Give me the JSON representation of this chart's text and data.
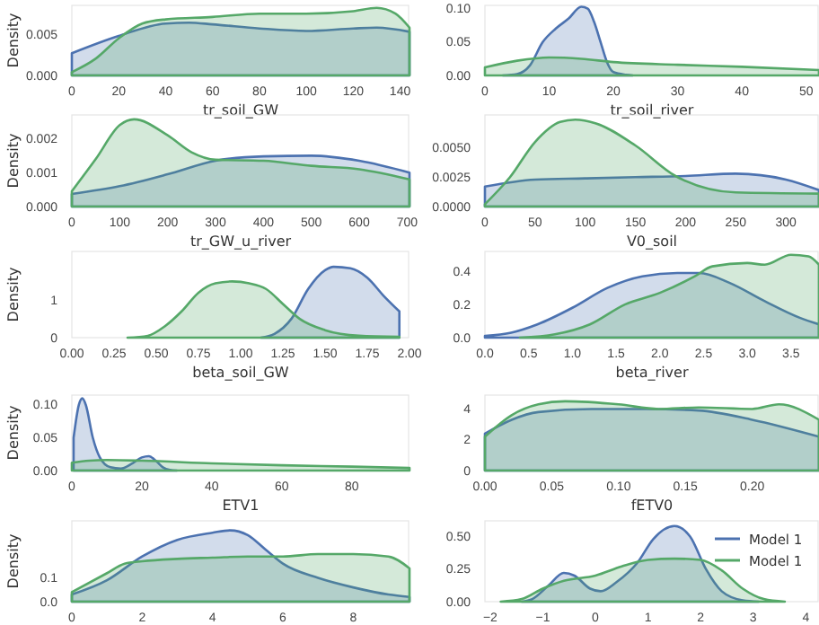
{
  "chart_data": [
    {
      "type": "area",
      "xlabel": "tr_soil_GW",
      "ylabel": "Density",
      "xlim": [
        0,
        144
      ],
      "ylim": [
        0,
        0.0085
      ],
      "xticks": [
        0,
        20,
        40,
        60,
        80,
        100,
        120,
        140
      ],
      "yticks": [
        {
          "value": 0,
          "label": "0.000"
        },
        {
          "value": 0.005,
          "label": "0.005"
        }
      ],
      "series": [
        {
          "color": "#4c72b0",
          "x": [
            0,
            20,
            40,
            50,
            60,
            80,
            100,
            120,
            130,
            144
          ],
          "values": [
            0.0027,
            0.0048,
            0.0063,
            0.0064,
            0.0062,
            0.0057,
            0.0054,
            0.0057,
            0.0058,
            0.0053
          ]
        },
        {
          "color": "#55a868",
          "x": [
            0,
            10,
            20,
            30,
            40,
            60,
            80,
            100,
            120,
            130,
            138,
            144
          ],
          "values": [
            0.0004,
            0.002,
            0.0045,
            0.0063,
            0.0068,
            0.0071,
            0.0075,
            0.0075,
            0.0078,
            0.0082,
            0.0075,
            0.0058
          ]
        }
      ]
    },
    {
      "type": "area",
      "xlabel": "tr_soil_river",
      "xlim": [
        0,
        52
      ],
      "ylim": [
        0,
        0.105
      ],
      "xticks": [
        0,
        10,
        20,
        30,
        40,
        50
      ],
      "yticks": [
        {
          "value": 0,
          "label": "0.00"
        },
        {
          "value": 0.05,
          "label": "0.05"
        },
        {
          "value": 0.1,
          "label": "0.10"
        }
      ],
      "series": [
        {
          "color": "#4c72b0",
          "x": [
            2.8,
            5,
            7,
            9,
            11,
            13,
            15,
            16,
            17,
            18,
            19,
            20,
            22,
            23
          ],
          "values": [
            0,
            0.002,
            0.015,
            0.05,
            0.07,
            0.085,
            0.103,
            0.1,
            0.08,
            0.05,
            0.02,
            0.005,
            0.001,
            0
          ]
        },
        {
          "color": "#55a868",
          "x": [
            0,
            5,
            10,
            15,
            20,
            30,
            40,
            52
          ],
          "values": [
            0.012,
            0.022,
            0.027,
            0.025,
            0.02,
            0.016,
            0.013,
            0.008
          ]
        }
      ]
    },
    {
      "type": "area",
      "xlabel": "tr_GW_u_river",
      "ylabel": "Density",
      "xlim": [
        0,
        705
      ],
      "ylim": [
        0,
        0.0027
      ],
      "xticks": [
        0,
        100,
        200,
        300,
        400,
        500,
        600,
        700
      ],
      "yticks": [
        {
          "value": 0,
          "label": "0.000"
        },
        {
          "value": 0.001,
          "label": "0.001"
        },
        {
          "value": 0.002,
          "label": "0.002"
        }
      ],
      "series": [
        {
          "color": "#4c72b0",
          "x": [
            0,
            100,
            200,
            300,
            400,
            500,
            600,
            705
          ],
          "values": [
            0.00037,
            0.0006,
            0.00095,
            0.00135,
            0.00148,
            0.0015,
            0.00135,
            0.001
          ]
        },
        {
          "color": "#55a868",
          "x": [
            0,
            50,
            100,
            130,
            200,
            250,
            300,
            400,
            500,
            600,
            705
          ],
          "values": [
            0.00045,
            0.0014,
            0.0024,
            0.00257,
            0.0021,
            0.0016,
            0.00138,
            0.00135,
            0.0012,
            0.0011,
            0.0008
          ]
        }
      ]
    },
    {
      "type": "area",
      "xlabel": "V0_soil",
      "xlim": [
        0,
        333
      ],
      "ylim": [
        0,
        0.0078
      ],
      "xticks": [
        0,
        50,
        100,
        150,
        200,
        250,
        300
      ],
      "yticks": [
        {
          "value": 0,
          "label": "0.0000"
        },
        {
          "value": 0.0025,
          "label": "0.0025"
        },
        {
          "value": 0.005,
          "label": "0.0050"
        }
      ],
      "series": [
        {
          "color": "#4c72b0",
          "x": [
            0,
            50,
            100,
            150,
            200,
            250,
            300,
            333
          ],
          "values": [
            0.0017,
            0.0023,
            0.0024,
            0.0025,
            0.0026,
            0.0028,
            0.0023,
            0.0014
          ]
        },
        {
          "color": "#55a868",
          "x": [
            0,
            25,
            50,
            75,
            90,
            110,
            150,
            190,
            250,
            333
          ],
          "values": [
            0.0002,
            0.0025,
            0.0055,
            0.0072,
            0.0074,
            0.0071,
            0.0052,
            0.0026,
            0.0012,
            0.0011
          ]
        }
      ]
    },
    {
      "type": "area",
      "xlabel": "beta_soil_GW",
      "ylabel": "Density",
      "xlim": [
        0,
        2
      ],
      "ylim": [
        0,
        2.3
      ],
      "xticks": [
        {
          "value": 0,
          "label": "0.00"
        },
        {
          "value": 0.25,
          "label": "0.25"
        },
        {
          "value": 0.5,
          "label": "0.50"
        },
        {
          "value": 0.75,
          "label": "0.75"
        },
        {
          "value": 1,
          "label": "1.00"
        },
        {
          "value": 1.25,
          "label": "1.25"
        },
        {
          "value": 1.5,
          "label": "1.50"
        },
        {
          "value": 1.75,
          "label": "1.75"
        },
        {
          "value": 2,
          "label": "2.00"
        }
      ],
      "yticks": [
        0,
        1
      ],
      "series": [
        {
          "color": "#4c72b0",
          "x": [
            1.12,
            1.2,
            1.3,
            1.4,
            1.5,
            1.55,
            1.65,
            1.75,
            1.85,
            1.94
          ],
          "values": [
            0,
            0.1,
            0.5,
            1.3,
            1.8,
            1.89,
            1.85,
            1.6,
            1.1,
            0.7
          ]
        },
        {
          "color": "#55a868",
          "x": [
            0.33,
            0.45,
            0.55,
            0.65,
            0.75,
            0.85,
            0.95,
            1.05,
            1.15,
            1.25,
            1.35,
            1.5,
            1.7,
            1.94
          ],
          "values": [
            0,
            0.05,
            0.3,
            0.7,
            1.2,
            1.45,
            1.5,
            1.45,
            1.3,
            0.9,
            0.5,
            0.2,
            0.05,
            0.02
          ]
        }
      ]
    },
    {
      "type": "area",
      "xlabel": "beta_river",
      "xlim": [
        0,
        3.82
      ],
      "ylim": [
        0,
        0.52
      ],
      "xticks": [
        {
          "value": 0,
          "label": "0.0"
        },
        {
          "value": 0.5,
          "label": "0.5"
        },
        {
          "value": 1,
          "label": "1.0"
        },
        {
          "value": 1.5,
          "label": "1.5"
        },
        {
          "value": 2,
          "label": "2.0"
        },
        {
          "value": 2.5,
          "label": "2.5"
        },
        {
          "value": 3,
          "label": "3.0"
        },
        {
          "value": 3.5,
          "label": "3.5"
        }
      ],
      "yticks": [
        {
          "value": 0,
          "label": "0.0"
        },
        {
          "value": 0.2,
          "label": "0.2"
        },
        {
          "value": 0.4,
          "label": "0.4"
        }
      ],
      "series": [
        {
          "color": "#4c72b0",
          "x": [
            0,
            0.3,
            0.6,
            1,
            1.4,
            1.8,
            2.2,
            2.45,
            2.8,
            3.2,
            3.6,
            3.82
          ],
          "values": [
            0.01,
            0.03,
            0.08,
            0.18,
            0.3,
            0.37,
            0.39,
            0.39,
            0.33,
            0.22,
            0.12,
            0.08
          ]
        },
        {
          "color": "#55a868",
          "x": [
            0.4,
            0.8,
            1.2,
            1.6,
            2,
            2.4,
            2.6,
            3,
            3.2,
            3.5,
            3.7,
            3.82
          ],
          "values": [
            0,
            0.02,
            0.08,
            0.2,
            0.27,
            0.37,
            0.43,
            0.45,
            0.44,
            0.5,
            0.49,
            0.44
          ]
        }
      ]
    },
    {
      "type": "area",
      "xlabel": "ETV1",
      "ylabel": "Density",
      "xlim": [
        0,
        96.5
      ],
      "ylim": [
        0,
        0.115
      ],
      "xticks": [
        0,
        20,
        40,
        60,
        80
      ],
      "yticks": [
        {
          "value": 0,
          "label": "0.00"
        },
        {
          "value": 0.05,
          "label": "0.05"
        },
        {
          "value": 0.1,
          "label": "0.10"
        }
      ],
      "series": [
        {
          "color": "#4c72b0",
          "x": [
            0.5,
            2,
            3,
            4,
            6,
            8,
            11,
            14,
            17,
            20,
            22,
            24,
            26,
            28,
            30
          ],
          "values": [
            0.05,
            0.1,
            0.11,
            0.1,
            0.05,
            0.02,
            0.005,
            0.003,
            0.01,
            0.02,
            0.022,
            0.015,
            0.005,
            0.001,
            0
          ]
        },
        {
          "color": "#55a868",
          "x": [
            0,
            5,
            10,
            20,
            40,
            60,
            80,
            96.5
          ],
          "values": [
            0.012,
            0.015,
            0.016,
            0.015,
            0.011,
            0.008,
            0.006,
            0.004
          ]
        }
      ]
    },
    {
      "type": "area",
      "xlabel": "fETV0",
      "xlim": [
        0,
        0.25
      ],
      "ylim": [
        0,
        4.9
      ],
      "xticks": [
        {
          "value": 0,
          "label": "0.00"
        },
        {
          "value": 0.05,
          "label": "0.05"
        },
        {
          "value": 0.1,
          "label": "0.10"
        },
        {
          "value": 0.15,
          "label": "0.15"
        },
        {
          "value": 0.2,
          "label": "0.20"
        }
      ],
      "yticks": [
        0,
        2,
        4
      ],
      "series": [
        {
          "color": "#4c72b0",
          "x": [
            0,
            0.02,
            0.04,
            0.08,
            0.12,
            0.16,
            0.2,
            0.25
          ],
          "values": [
            2.4,
            3.3,
            3.8,
            4,
            4,
            3.9,
            3.3,
            2.2
          ]
        },
        {
          "color": "#55a868",
          "x": [
            0,
            0.02,
            0.04,
            0.06,
            0.1,
            0.13,
            0.16,
            0.2,
            0.22,
            0.25
          ],
          "values": [
            2.2,
            3.6,
            4.3,
            4.5,
            4.3,
            4,
            4.1,
            4,
            4.3,
            3.3
          ]
        }
      ]
    },
    {
      "type": "area",
      "ylabel": "Density",
      "xlim": [
        0,
        9.6
      ],
      "ylim": [
        0,
        0.34
      ],
      "xticks": [
        0,
        2,
        4,
        6,
        8
      ],
      "yticks": [
        {
          "value": 0,
          "label": "0.0"
        },
        {
          "value": 0.1,
          "label": "0.1"
        }
      ],
      "series": [
        {
          "color": "#4c72b0",
          "x": [
            0,
            1,
            2,
            3,
            4,
            4.5,
            5,
            5.5,
            6,
            7,
            8,
            9,
            9.6
          ],
          "values": [
            0.03,
            0.09,
            0.19,
            0.26,
            0.29,
            0.3,
            0.28,
            0.22,
            0.16,
            0.1,
            0.06,
            0.03,
            0.02
          ]
        },
        {
          "color": "#55a868",
          "x": [
            0,
            1,
            1.5,
            2,
            3,
            4,
            5,
            6,
            7,
            8,
            9,
            9.6
          ],
          "values": [
            0.04,
            0.12,
            0.16,
            0.17,
            0.18,
            0.185,
            0.19,
            0.19,
            0.2,
            0.2,
            0.19,
            0.14
          ]
        }
      ]
    },
    {
      "type": "area",
      "legend": "top right",
      "xlim": [
        -2.1,
        4.25
      ],
      "ylim": [
        0,
        0.62
      ],
      "xticks": [
        {
          "value": -2,
          "label": "−2"
        },
        {
          "value": -1,
          "label": "−1"
        },
        0,
        1,
        2,
        3,
        4
      ],
      "yticks": [
        {
          "value": 0,
          "label": "0.00"
        },
        {
          "value": 0.25,
          "label": "0.25"
        },
        {
          "value": 0.5,
          "label": "0.50"
        }
      ],
      "series": [
        {
          "name": "Model 1",
          "color": "#4c72b0",
          "x": [
            -1.4,
            -1.2,
            -0.9,
            -0.6,
            -0.4,
            -0.1,
            0.1,
            0.4,
            0.8,
            1.1,
            1.5,
            1.8,
            2.1,
            2.4,
            2.8,
            3.1
          ],
          "values": [
            0,
            0.02,
            0.12,
            0.22,
            0.2,
            0.1,
            0.08,
            0.15,
            0.3,
            0.48,
            0.58,
            0.5,
            0.25,
            0.08,
            0.01,
            0
          ]
        },
        {
          "name": "Model 1",
          "color": "#55a868",
          "x": [
            -1.8,
            -1.4,
            -1,
            -0.6,
            0,
            0.5,
            1,
            1.5,
            2,
            2.4,
            2.8,
            3.2,
            3.6
          ],
          "values": [
            0,
            0.02,
            0.1,
            0.16,
            0.2,
            0.27,
            0.32,
            0.33,
            0.32,
            0.24,
            0.1,
            0.02,
            0
          ]
        }
      ]
    }
  ]
}
